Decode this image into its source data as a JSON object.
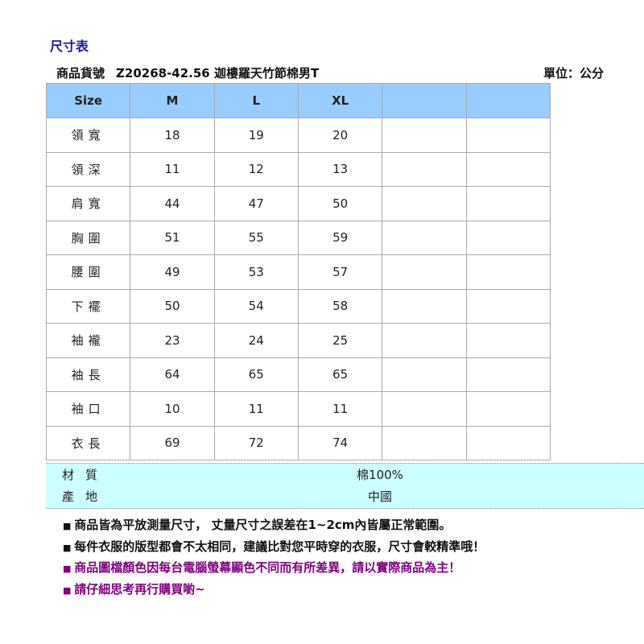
{
  "title": "尺寸表",
  "product": {
    "label": "商品貨號",
    "name": "Z20268-42.56 迦樓羅天竹節棉男T"
  },
  "unit": "單位：公分",
  "table": {
    "headers": [
      "Size",
      "M",
      "L",
      "XL",
      "",
      ""
    ],
    "rows": [
      [
        "領寬",
        "18",
        "19",
        "20",
        "",
        ""
      ],
      [
        "領深",
        "11",
        "12",
        "13",
        "",
        ""
      ],
      [
        "肩寬",
        "44",
        "47",
        "50",
        "",
        ""
      ],
      [
        "胸圍",
        "51",
        "55",
        "59",
        "",
        ""
      ],
      [
        "腰圍",
        "49",
        "53",
        "57",
        "",
        ""
      ],
      [
        "下襬",
        "50",
        "54",
        "58",
        "",
        ""
      ],
      [
        "袖襱",
        "23",
        "24",
        "25",
        "",
        ""
      ],
      [
        "袖長",
        "64",
        "65",
        "65",
        "",
        ""
      ],
      [
        "袖口",
        "10",
        "11",
        "11",
        "",
        ""
      ],
      [
        "衣長",
        "69",
        "72",
        "74",
        "",
        ""
      ]
    ]
  },
  "info": [
    {
      "label": "材質",
      "value": "棉100%"
    },
    {
      "label": "產地",
      "value": "中國"
    }
  ],
  "notes": [
    {
      "text": "商品皆為平放測量尺寸， 丈量尺寸之誤差在1~2cm內皆屬正常範圍。",
      "color": "#111111"
    },
    {
      "text": "每件衣服的版型都會不太相同，建議比對您平時穿的衣服，尺寸會較精準哦！",
      "color": "#111111"
    },
    {
      "text": "商品圖檔顏色因每台電腦螢幕顯色不同而有所差異，請以實際商品為主！",
      "color": "#800080"
    },
    {
      "text": "請仔細思考再行購買喲~",
      "color": "#800080"
    }
  ]
}
